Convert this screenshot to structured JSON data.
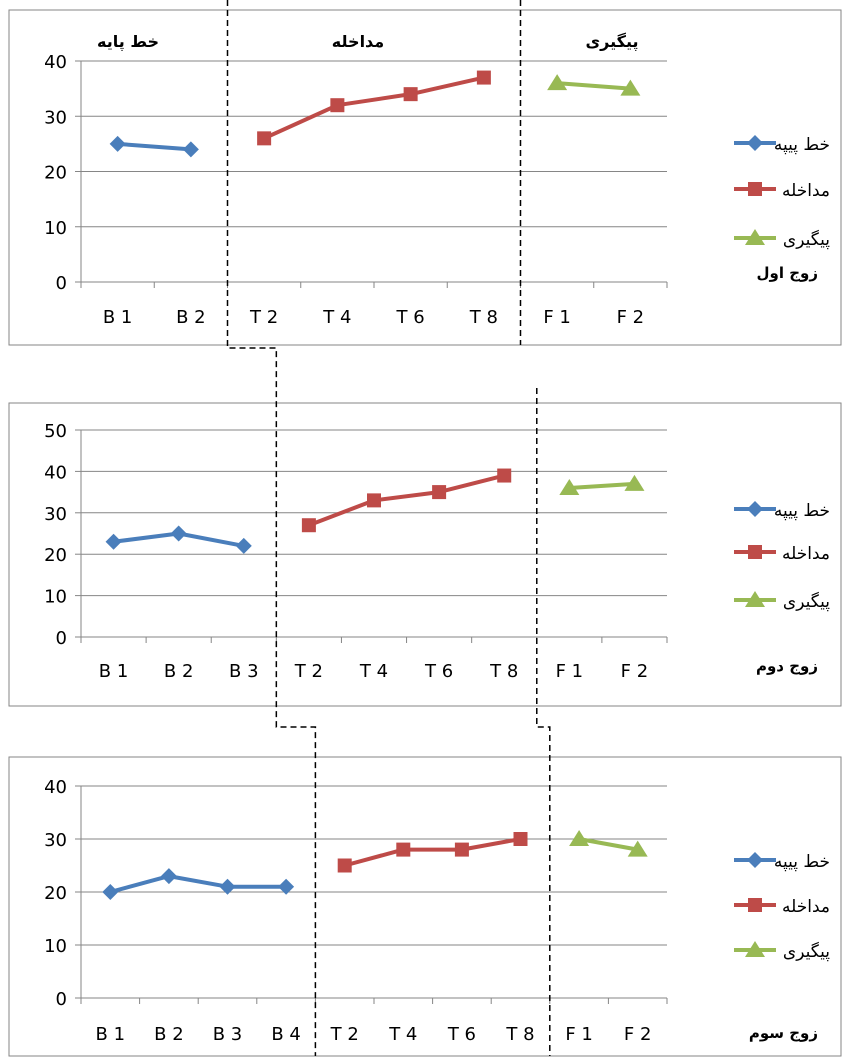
{
  "phase_headers": {
    "baseline": "خط پایه",
    "intervention": "مداخله",
    "followup": "پیگیری"
  },
  "colors": {
    "baseline": "#4a7ebb",
    "intervention": "#be4b48",
    "followup": "#98b954",
    "grid": "#868686",
    "phase_line": "#000000"
  },
  "legend_markers": {
    "baseline": "diamond",
    "intervention": "square",
    "followup": "triangle"
  },
  "chart_data": [
    {
      "type": "line",
      "title": "زوج اول",
      "categories": [
        "B 1",
        "B 2",
        "T 2",
        "T 4",
        "T 6",
        "T 8",
        "F 1",
        "F 2"
      ],
      "ylim": [
        0,
        40
      ],
      "yticks": [
        0,
        10,
        20,
        30,
        40
      ],
      "grid": true,
      "legend_position": "right",
      "series": [
        {
          "name": "خط پیپه",
          "values": [
            25,
            24,
            null,
            null,
            null,
            null,
            null,
            null
          ]
        },
        {
          "name": "مداخله",
          "values": [
            null,
            null,
            26,
            32,
            34,
            37,
            null,
            null
          ]
        },
        {
          "name": "پیگیری",
          "values": [
            null,
            null,
            null,
            null,
            null,
            null,
            36,
            35
          ]
        }
      ]
    },
    {
      "type": "line",
      "title": "زوج دوم",
      "categories": [
        "B 1",
        "B 2",
        "B 3",
        "T 2",
        "T 4",
        "T 6",
        "T 8",
        "F 1",
        "F 2"
      ],
      "ylim": [
        0,
        50
      ],
      "yticks": [
        0,
        10,
        20,
        30,
        40,
        50
      ],
      "grid": true,
      "legend_position": "right",
      "series": [
        {
          "name": "خط پیپه",
          "values": [
            23,
            25,
            22,
            null,
            null,
            null,
            null,
            null,
            null
          ]
        },
        {
          "name": "مداخله",
          "values": [
            null,
            null,
            null,
            27,
            33,
            35,
            39,
            null,
            null
          ]
        },
        {
          "name": "پیگیری",
          "values": [
            null,
            null,
            null,
            null,
            null,
            null,
            null,
            36,
            37
          ]
        }
      ]
    },
    {
      "type": "line",
      "title": "زوج سوم",
      "categories": [
        "B 1",
        "B 2",
        "B 3",
        "B 4",
        "T 2",
        "T 4",
        "T 6",
        "T 8",
        "F 1",
        "F 2"
      ],
      "ylim": [
        0,
        40
      ],
      "yticks": [
        0,
        10,
        20,
        30,
        40
      ],
      "grid": true,
      "legend_position": "right",
      "series": [
        {
          "name": "خط پیپه",
          "values": [
            20,
            23,
            21,
            21,
            null,
            null,
            null,
            null,
            null,
            null
          ]
        },
        {
          "name": "مداخله",
          "values": [
            null,
            null,
            null,
            null,
            25,
            28,
            28,
            30,
            null,
            null
          ]
        },
        {
          "name": "پیگیری",
          "values": [
            null,
            null,
            null,
            null,
            null,
            null,
            null,
            null,
            30,
            28
          ]
        }
      ]
    }
  ]
}
